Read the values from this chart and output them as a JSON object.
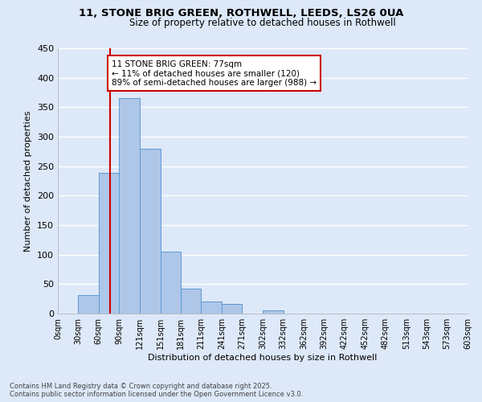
{
  "title1": "11, STONE BRIG GREEN, ROTHWELL, LEEDS, LS26 0UA",
  "title2": "Size of property relative to detached houses in Rothwell",
  "xlabel": "Distribution of detached houses by size in Rothwell",
  "ylabel": "Number of detached properties",
  "bin_labels": [
    "0sqm",
    "30sqm",
    "60sqm",
    "90sqm",
    "121sqm",
    "151sqm",
    "181sqm",
    "211sqm",
    "241sqm",
    "271sqm",
    "302sqm",
    "332sqm",
    "362sqm",
    "392sqm",
    "422sqm",
    "452sqm",
    "482sqm",
    "513sqm",
    "543sqm",
    "573sqm",
    "603sqm"
  ],
  "bin_values": [
    0,
    32,
    238,
    365,
    280,
    105,
    42,
    21,
    16,
    0,
    6,
    0,
    0,
    0,
    0,
    0,
    0,
    0,
    0,
    0,
    0
  ],
  "bar_color": "#aec6e8",
  "bar_edge_color": "#5b9bd5",
  "property_line_x": 77,
  "bin_edges": [
    0,
    30,
    60,
    90,
    121,
    151,
    181,
    211,
    241,
    271,
    302,
    332,
    362,
    392,
    422,
    452,
    482,
    513,
    543,
    573,
    603
  ],
  "annotation_text": "11 STONE BRIG GREEN: 77sqm\n← 11% of detached houses are smaller (120)\n89% of semi-detached houses are larger (988) →",
  "ylim": [
    0,
    450
  ],
  "yticks": [
    0,
    50,
    100,
    150,
    200,
    250,
    300,
    350,
    400,
    450
  ],
  "footer1": "Contains HM Land Registry data © Crown copyright and database right 2025.",
  "footer2": "Contains public sector information licensed under the Open Government Licence v3.0.",
  "bg_color": "#dde8f8",
  "grid_color": "#ffffff",
  "annotation_box_color": "#ffffff",
  "annotation_box_edge": "#cc0000",
  "line_color": "#cc0000",
  "title1_fontsize": 9.5,
  "title2_fontsize": 8.5,
  "xlabel_fontsize": 8.0,
  "ylabel_fontsize": 8.0,
  "xtick_fontsize": 7.0,
  "ytick_fontsize": 8.0,
  "footer_fontsize": 6.0,
  "annot_fontsize": 7.5
}
